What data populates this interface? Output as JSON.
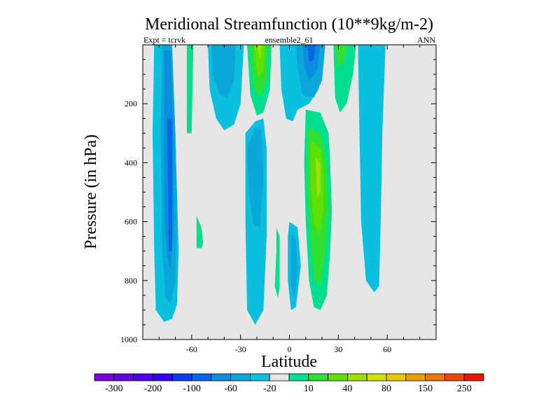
{
  "chart_data": {
    "type": "contour",
    "title": "Meridional Streamfunction (10**9kg/m-2)",
    "subtitle_left": "Expt = tcrvk",
    "subtitle_center": "ensemble2_61",
    "subtitle_right": "ANN",
    "xlabel": "Latitude",
    "ylabel": "Pressure (in hPa)",
    "xlim": [
      -90,
      90
    ],
    "ylim": [
      0,
      1000
    ],
    "y_reversed": true,
    "x_ticks": [
      -60,
      -30,
      0,
      30,
      60
    ],
    "x_tick_labels": [
      "-60",
      "-30",
      "0",
      "30",
      "60"
    ],
    "y_ticks": [
      200,
      400,
      600,
      800,
      1000
    ],
    "y_tick_labels": [
      "200",
      "400",
      "600",
      "800",
      "1000"
    ],
    "background_color": "#e6e6e6",
    "colorbar": {
      "colors": [
        "#7a00d8",
        "#6400e6",
        "#4c00ee",
        "#3300f0",
        "#0a3ef0",
        "#0a66e8",
        "#0a8ee0",
        "#0aa8d8",
        "#0ac0de",
        "#e6e6e6",
        "#00e090",
        "#30e030",
        "#60e000",
        "#a0e000",
        "#d0e000",
        "#e8c800",
        "#e8a000",
        "#e87800",
        "#e84800",
        "#e81800"
      ],
      "labels": [
        "-300",
        "-200",
        "-100",
        "-60",
        "-20",
        "10",
        "40",
        "80",
        "150",
        "250"
      ]
    },
    "contours": [
      {
        "name": "sh-outer",
        "color": "#0ac0de",
        "points": [
          [
            -83,
            0
          ],
          [
            -76,
            0
          ],
          [
            -70,
            300
          ],
          [
            -68,
            700
          ],
          [
            -69,
            880
          ],
          [
            -72,
            930
          ],
          [
            -77,
            940
          ],
          [
            -82,
            900
          ],
          [
            -83,
            700
          ],
          [
            -84,
            300
          ]
        ]
      },
      {
        "name": "sh-mid",
        "color": "#0aa8d8",
        "points": [
          [
            -78,
            0
          ],
          [
            -72,
            0
          ],
          [
            -70,
            300
          ],
          [
            -69,
            600
          ],
          [
            -70,
            800
          ],
          [
            -73,
            880
          ],
          [
            -76,
            860
          ],
          [
            -78,
            700
          ],
          [
            -79,
            300
          ]
        ]
      },
      {
        "name": "sh-inner",
        "color": "#0a8ee0",
        "points": [
          [
            -77,
            20
          ],
          [
            -73,
            20
          ],
          [
            -71,
            300
          ],
          [
            -71,
            600
          ],
          [
            -73,
            760
          ],
          [
            -75,
            720
          ],
          [
            -77,
            550
          ],
          [
            -77,
            250
          ]
        ]
      },
      {
        "name": "sh-core",
        "color": "#0a66e8",
        "points": [
          [
            -75,
            250
          ],
          [
            -72,
            250
          ],
          [
            -72,
            700
          ],
          [
            -74,
            700
          ]
        ]
      },
      {
        "name": "green-strip-top",
        "color": "#00e090",
        "points": [
          [
            -63,
            0
          ],
          [
            -59,
            0
          ],
          [
            -60,
            300
          ],
          [
            -63,
            300
          ]
        ]
      },
      {
        "name": "green-blob-low",
        "color": "#00e090",
        "points": [
          [
            -57,
            580
          ],
          [
            -54,
            620
          ],
          [
            -53,
            670
          ],
          [
            -54,
            690
          ],
          [
            -57,
            690
          ],
          [
            -57,
            620
          ]
        ]
      },
      {
        "name": "upper-cyan-left",
        "color": "#0ac0de",
        "points": [
          [
            -50,
            0
          ],
          [
            -28,
            0
          ],
          [
            -30,
            200
          ],
          [
            -34,
            270
          ],
          [
            -40,
            290
          ],
          [
            -45,
            250
          ],
          [
            -49,
            150
          ]
        ]
      },
      {
        "name": "upper-cyan-left-inner",
        "color": "#0aa8d8",
        "points": [
          [
            -48,
            0
          ],
          [
            -33,
            0
          ],
          [
            -34,
            120
          ],
          [
            -38,
            180
          ],
          [
            -43,
            170
          ],
          [
            -47,
            100
          ]
        ]
      },
      {
        "name": "upper-green-a",
        "color": "#00e090",
        "points": [
          [
            -26,
            0
          ],
          [
            -11,
            0
          ],
          [
            -12,
            150
          ],
          [
            -16,
            230
          ],
          [
            -20,
            240
          ],
          [
            -24,
            170
          ]
        ]
      },
      {
        "name": "upper-green-b",
        "color": "#30e030",
        "points": [
          [
            -24,
            0
          ],
          [
            -13,
            0
          ],
          [
            -14,
            120
          ],
          [
            -18,
            180
          ],
          [
            -22,
            140
          ]
        ]
      },
      {
        "name": "upper-green-c",
        "color": "#60e000",
        "points": [
          [
            -22,
            0
          ],
          [
            -15,
            0
          ],
          [
            -16,
            90
          ],
          [
            -19,
            110
          ],
          [
            -21,
            70
          ]
        ]
      },
      {
        "name": "upper-green-d",
        "color": "#a0e000",
        "points": [
          [
            -20,
            0
          ],
          [
            -17,
            0
          ],
          [
            -18,
            50
          ]
        ]
      },
      {
        "name": "upper-cyan-center",
        "color": "#0ac0de",
        "points": [
          [
            -6,
            0
          ],
          [
            20,
            0
          ],
          [
            18,
            150
          ],
          [
            12,
            200
          ],
          [
            5,
            220
          ],
          [
            2,
            260
          ],
          [
            -2,
            250
          ],
          [
            -5,
            150
          ]
        ]
      },
      {
        "name": "upper-cyan-center-inner",
        "color": "#0aa8d8",
        "points": [
          [
            4,
            0
          ],
          [
            22,
            0
          ],
          [
            20,
            120
          ],
          [
            15,
            180
          ],
          [
            8,
            170
          ],
          [
            5,
            80
          ]
        ]
      },
      {
        "name": "upper-blue-center",
        "color": "#0a8ee0",
        "points": [
          [
            8,
            0
          ],
          [
            19,
            0
          ],
          [
            17,
            90
          ],
          [
            12,
            120
          ],
          [
            9,
            70
          ]
        ]
      },
      {
        "name": "upper-blue-core",
        "color": "#0a66e8",
        "points": [
          [
            11,
            0
          ],
          [
            16,
            0
          ],
          [
            15,
            50
          ],
          [
            12,
            60
          ]
        ]
      },
      {
        "name": "upper-green-right",
        "color": "#00e090",
        "points": [
          [
            27,
            0
          ],
          [
            41,
            0
          ],
          [
            39,
            100
          ],
          [
            35,
            200
          ],
          [
            31,
            230
          ],
          [
            28,
            180
          ]
        ]
      },
      {
        "name": "upper-green-right-inner",
        "color": "#30e030",
        "points": [
          [
            28,
            0
          ],
          [
            36,
            0
          ],
          [
            33,
            60
          ],
          [
            30,
            80
          ]
        ]
      },
      {
        "name": "nh-outer",
        "color": "#0ac0de",
        "points": [
          [
            42,
            0
          ],
          [
            59,
            0
          ],
          [
            57,
            300
          ],
          [
            56,
            600
          ],
          [
            55,
            820
          ],
          [
            52,
            840
          ],
          [
            47,
            800
          ],
          [
            44,
            600
          ],
          [
            43,
            300
          ]
        ]
      },
      {
        "name": "mid-blue-left",
        "color": "#0ac0de",
        "points": [
          [
            -27,
            300
          ],
          [
            -21,
            260
          ],
          [
            -16,
            250
          ],
          [
            -14,
            350
          ],
          [
            -14,
            650
          ],
          [
            -16,
            900
          ],
          [
            -21,
            950
          ],
          [
            -26,
            900
          ],
          [
            -27,
            600
          ]
        ]
      },
      {
        "name": "mid-blue-left-inner",
        "color": "#0aa8d8",
        "points": [
          [
            -26,
            350
          ],
          [
            -21,
            280
          ],
          [
            -17,
            290
          ],
          [
            -16,
            450
          ],
          [
            -18,
            620
          ],
          [
            -22,
            610
          ],
          [
            -25,
            500
          ]
        ]
      },
      {
        "name": "green-sliver-center",
        "color": "#00e090",
        "points": [
          [
            -8,
            620
          ],
          [
            -6,
            650
          ],
          [
            -6,
            820
          ],
          [
            -7,
            860
          ],
          [
            -9,
            820
          ],
          [
            -8,
            700
          ]
        ]
      },
      {
        "name": "mid-blue-center",
        "color": "#0ac0de",
        "points": [
          [
            0,
            600
          ],
          [
            5,
            620
          ],
          [
            7,
            750
          ],
          [
            4,
            890
          ],
          [
            1,
            900
          ],
          [
            -1,
            800
          ],
          [
            -1,
            650
          ]
        ]
      },
      {
        "name": "mid-blue-center-inner",
        "color": "#0aa8d8",
        "points": [
          [
            1,
            640
          ],
          [
            4,
            660
          ],
          [
            5,
            770
          ],
          [
            3,
            860
          ],
          [
            1,
            820
          ]
        ]
      },
      {
        "name": "nh-green-outer",
        "color": "#00e090",
        "points": [
          [
            10,
            220
          ],
          [
            19,
            230
          ],
          [
            24,
            300
          ],
          [
            25,
            400
          ],
          [
            26,
            560
          ],
          [
            25,
            700
          ],
          [
            23,
            850
          ],
          [
            19,
            900
          ],
          [
            15,
            890
          ],
          [
            12,
            800
          ],
          [
            10,
            600
          ],
          [
            9,
            400
          ]
        ]
      },
      {
        "name": "nh-green-mid",
        "color": "#30e030",
        "points": [
          [
            11,
            280
          ],
          [
            19,
            300
          ],
          [
            23,
            400
          ],
          [
            24,
            550
          ],
          [
            22,
            700
          ],
          [
            19,
            820
          ],
          [
            15,
            790
          ],
          [
            13,
            650
          ],
          [
            11,
            500
          ]
        ]
      },
      {
        "name": "nh-green-inner",
        "color": "#60e000",
        "points": [
          [
            13,
            330
          ],
          [
            19,
            350
          ],
          [
            21,
            440
          ],
          [
            21,
            560
          ],
          [
            18,
            650
          ],
          [
            15,
            600
          ],
          [
            13,
            480
          ]
        ]
      },
      {
        "name": "nh-green-core",
        "color": "#a0e000",
        "points": [
          [
            16,
            380
          ],
          [
            19,
            400
          ],
          [
            19,
            500
          ],
          [
            17,
            520
          ]
        ]
      }
    ]
  }
}
